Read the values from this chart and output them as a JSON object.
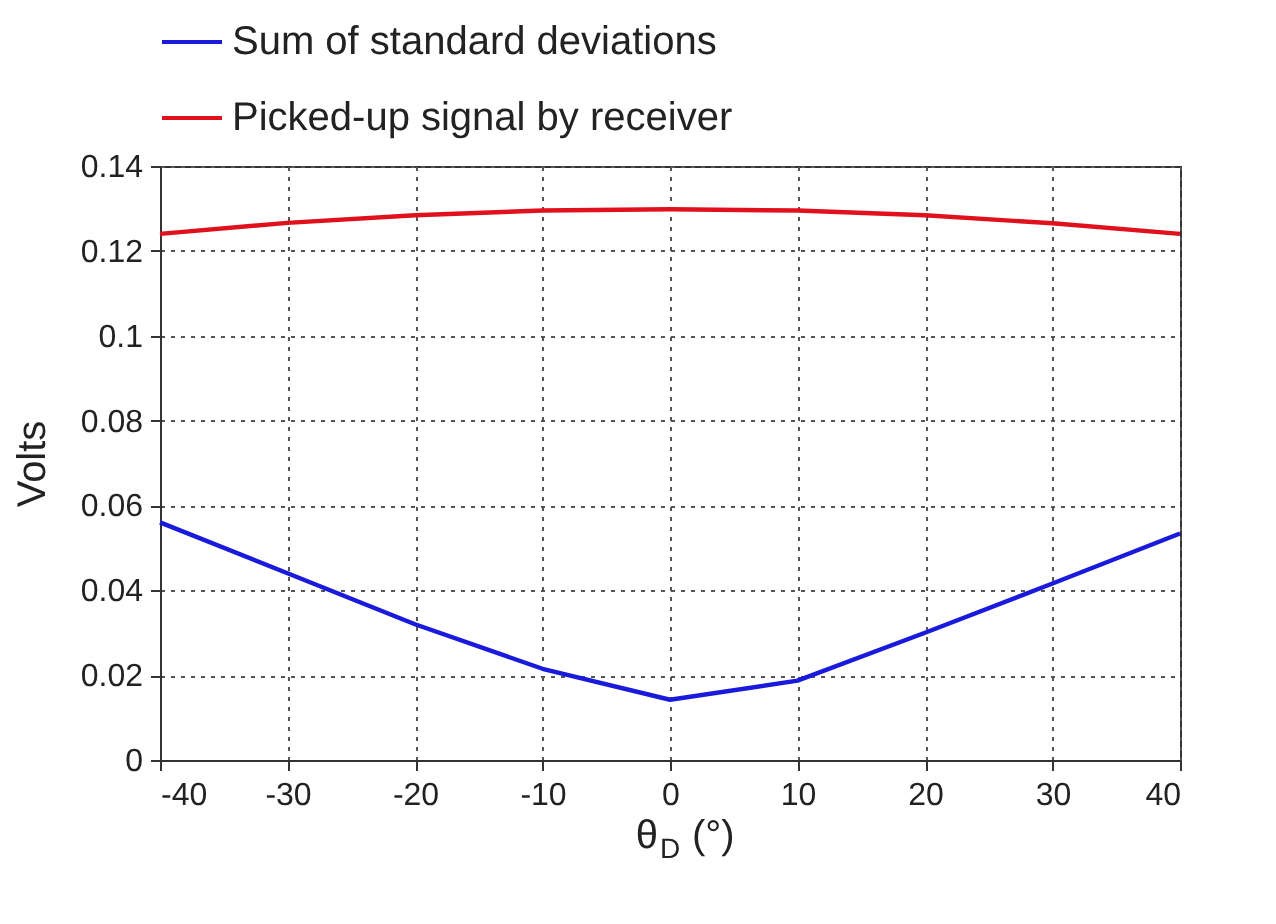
{
  "chart_data": {
    "type": "line",
    "xlabel": "θ$_{D}$ (°)",
    "ylabel": "Volts",
    "x": [
      -40,
      -30,
      -20,
      -10,
      0,
      10,
      20,
      30,
      40
    ],
    "series": [
      {
        "name": "Sum of standard deviations",
        "color": "#1a1adc",
        "values": [
          0.056,
          0.044,
          0.032,
          0.0215,
          0.0142,
          0.0187,
          0.03,
          0.0416,
          0.0534
        ]
      },
      {
        "name": "Picked-up signal by receiver",
        "color": "#e0101c",
        "values": [
          0.124,
          0.1266,
          0.1284,
          0.1295,
          0.1298,
          0.1295,
          0.1284,
          0.1265,
          0.124
        ]
      }
    ],
    "xlim": [
      -40,
      40
    ],
    "xticks": [
      -40,
      -30,
      -20,
      -10,
      0,
      10,
      20,
      30,
      40
    ],
    "ylim": [
      0,
      0.14
    ],
    "yticks": [
      0,
      0.02,
      0.04,
      0.06,
      0.08,
      0.1,
      0.12,
      0.14
    ],
    "grid": true,
    "legend": "top",
    "marker": "none",
    "line_style": "solid"
  }
}
